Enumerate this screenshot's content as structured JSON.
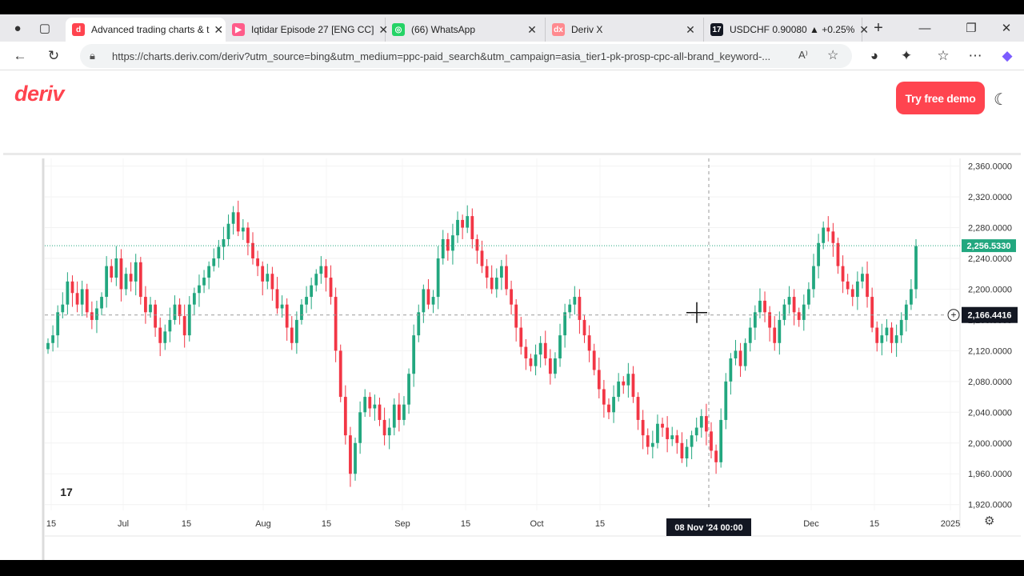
{
  "browser": {
    "tabs": [
      {
        "title": "Advanced trading charts & t",
        "favicon_color": "#ff444f",
        "favicon_text": "d",
        "active": true
      },
      {
        "title": "Iqtidar Episode 27 [ENG CC]",
        "favicon_color": "#ff5c8a",
        "favicon_text": "▶",
        "active": false
      },
      {
        "title": "(66) WhatsApp",
        "favicon_color": "#25d366",
        "favicon_text": "◎",
        "active": false
      },
      {
        "title": "Deriv X",
        "favicon_color": "#ff8a8f",
        "favicon_text": "dx",
        "active": false
      },
      {
        "title": "USDCHF 0.90080 ▲ +0.25%",
        "favicon_color": "#131722",
        "favicon_text": "17",
        "active": false
      }
    ],
    "url": "https://charts.deriv.com/deriv?utm_source=bing&utm_medium=ppc-paid_search&utm_campaign=asia_tier1-pk-prosp-cpc-all-brand_keyword-..."
  },
  "site": {
    "logo_text": "deriv",
    "cta_label": "Try free demo"
  },
  "chart_data": {
    "type": "candlestick",
    "y_ticks": [
      "2,360.0000",
      "2,320.0000",
      "2,280.0000",
      "2,240.0000",
      "2,200.0000",
      "2,160.0000",
      "2,120.0000",
      "2,080.0000",
      "2,040.0000",
      "2,000.0000",
      "1,960.0000",
      "1,920.0000"
    ],
    "y_tick_values": [
      2360,
      2320,
      2280,
      2240,
      2200,
      2160,
      2120,
      2080,
      2040,
      2000,
      1960,
      1920
    ],
    "ylim": [
      1902,
      2370
    ],
    "x_ticks": [
      "15",
      "Jul",
      "15",
      "Aug",
      "15",
      "Sep",
      "15",
      "Oct",
      "15",
      "Dec",
      "15",
      "2025"
    ],
    "last_price": "2,256.5330",
    "last_price_value": 2256.533,
    "crosshair_price": "2,166.4416",
    "crosshair_price_value": 2166.4416,
    "crosshair_time": "08 Nov '24   00:00",
    "up_color": "#22a77f",
    "down_color": "#f23645",
    "closes": [
      2130,
      2140,
      2170,
      2180,
      2210,
      2195,
      2180,
      2200,
      2170,
      2160,
      2175,
      2190,
      2230,
      2215,
      2240,
      2200,
      2220,
      2210,
      2235,
      2190,
      2170,
      2180,
      2150,
      2130,
      2145,
      2160,
      2180,
      2165,
      2140,
      2180,
      2195,
      2205,
      2215,
      2230,
      2240,
      2255,
      2265,
      2285,
      2300,
      2275,
      2280,
      2260,
      2240,
      2230,
      2210,
      2220,
      2200,
      2175,
      2180,
      2150,
      2130,
      2160,
      2180,
      2190,
      2205,
      2220,
      2230,
      2215,
      2190,
      2120,
      2060,
      2010,
      1960,
      2000,
      2040,
      2060,
      2045,
      2050,
      2030,
      2010,
      2020,
      2050,
      2030,
      2050,
      2090,
      2140,
      2170,
      2200,
      2180,
      2190,
      2240,
      2265,
      2250,
      2270,
      2290,
      2280,
      2295,
      2265,
      2250,
      2230,
      2215,
      2200,
      2215,
      2230,
      2200,
      2180,
      2150,
      2125,
      2110,
      2100,
      2115,
      2130,
      2110,
      2090,
      2110,
      2140,
      2170,
      2180,
      2190,
      2160,
      2140,
      2120,
      2095,
      2070,
      2050,
      2040,
      2060,
      2080,
      2075,
      2090,
      2060,
      2030,
      2010,
      1995,
      2000,
      2025,
      2020,
      2005,
      2010,
      2000,
      1980,
      1995,
      2010,
      2020,
      2035,
      2015,
      1990,
      1975,
      2030,
      2080,
      2110,
      2120,
      2100,
      2130,
      2150,
      2170,
      2185,
      2170,
      2150,
      2130,
      2160,
      2180,
      2190,
      2170,
      2160,
      2180,
      2200,
      2230,
      2260,
      2280,
      2275,
      2260,
      2230,
      2210,
      2200,
      2190,
      2210,
      2220,
      2190,
      2150,
      2130,
      2140,
      2150,
      2130,
      2140,
      2160,
      2180,
      2200,
      2256
    ]
  }
}
